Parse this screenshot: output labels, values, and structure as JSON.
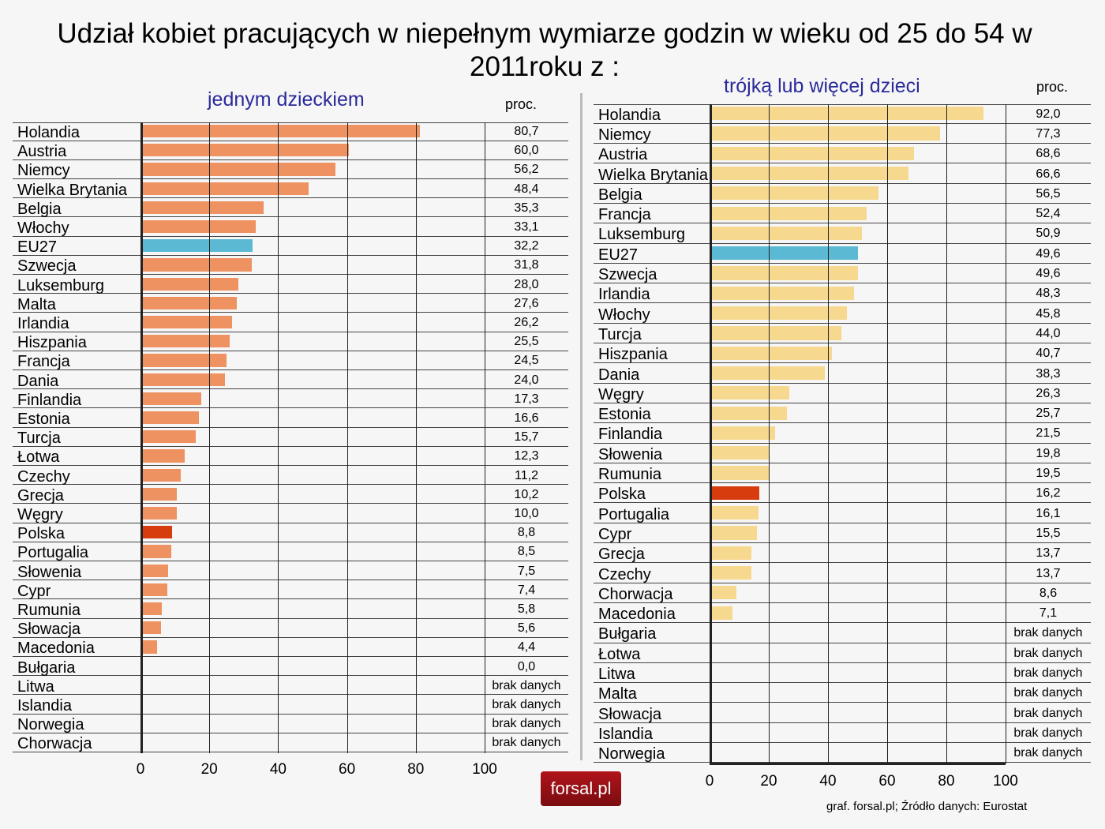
{
  "chart_data": [
    {
      "type": "bar",
      "title": "Udział kobiet pracujących w niepełnym wymiarze godzin w wieku od 25 do 54 w  2011roku  z :",
      "subtitle": "jednym dzieckiem",
      "unit": "proc.",
      "xlim": [
        0,
        100
      ],
      "xticks": [
        "0",
        "20",
        "40",
        "60",
        "80",
        "100"
      ],
      "grid": true,
      "colors": {
        "default": "#EE9262",
        "EU27": "#5CB9D4",
        "Polska": "#D63C0E"
      },
      "categories": [
        "Holandia",
        "Austria",
        "Niemcy",
        "Wielka Brytania",
        "Belgia",
        "Włochy",
        "EU27",
        "Szwecja",
        "Luksemburg",
        "Malta",
        "Irlandia",
        "Hiszpania",
        "Francja",
        "Dania",
        "Finlandia",
        "Estonia",
        "Turcja",
        "Łotwa",
        "Czechy",
        "Grecja",
        "Węgry",
        "Polska",
        "Portugalia",
        "Słowenia",
        "Cypr",
        "Rumunia",
        "Słowacja",
        "Macedonia",
        "Bułgaria",
        "Litwa",
        "Islandia",
        "Norwegia",
        "Chorwacja"
      ],
      "values": [
        80.7,
        60.0,
        56.2,
        48.4,
        35.3,
        33.1,
        32.2,
        31.8,
        28.0,
        27.6,
        26.2,
        25.5,
        24.5,
        24.0,
        17.3,
        16.6,
        15.7,
        12.3,
        11.2,
        10.2,
        10.0,
        8.8,
        8.5,
        7.5,
        7.4,
        5.8,
        5.6,
        4.4,
        0.0,
        null,
        null,
        null,
        null
      ],
      "value_labels": [
        "80,7",
        "60,0",
        "56,2",
        "48,4",
        "35,3",
        "33,1",
        "32,2",
        "31,8",
        "28,0",
        "27,6",
        "26,2",
        "25,5",
        "24,5",
        "24,0",
        "17,3",
        "16,6",
        "15,7",
        "12,3",
        "11,2",
        "10,2",
        "10,0",
        "8,8",
        "8,5",
        "7,5",
        "7,4",
        "5,8",
        "5,6",
        "4,4",
        "0,0",
        "brak danych",
        "brak danych",
        "brak danych",
        "brak danych"
      ]
    },
    {
      "type": "bar",
      "subtitle": "trójką lub więcej dzieci",
      "unit": "proc.",
      "xlim": [
        0,
        100
      ],
      "xticks": [
        "0",
        "20",
        "40",
        "60",
        "80",
        "100"
      ],
      "grid": true,
      "colors": {
        "default": "#F6D98E",
        "EU27": "#5CB9D4",
        "Polska": "#D63C0E"
      },
      "categories": [
        "Holandia",
        "Niemcy",
        "Austria",
        "Wielka Brytania",
        "Belgia",
        "Francja",
        "Luksemburg",
        "EU27",
        "Szwecja",
        "Irlandia",
        "Włochy",
        "Turcja",
        "Hiszpania",
        "Dania",
        "Węgry",
        "Estonia",
        "Finlandia",
        "Słowenia",
        "Rumunia",
        "Polska",
        "Portugalia",
        "Cypr",
        "Grecja",
        "Czechy",
        "Chorwacja",
        "Macedonia",
        "Bułgaria",
        "Łotwa",
        "Litwa",
        "Malta",
        "Słowacja",
        "Islandia",
        "Norwegia"
      ],
      "values": [
        92.0,
        77.3,
        68.6,
        66.6,
        56.5,
        52.4,
        50.9,
        49.6,
        49.6,
        48.3,
        45.8,
        44.0,
        40.7,
        38.3,
        26.3,
        25.7,
        21.5,
        19.8,
        19.5,
        16.2,
        16.1,
        15.5,
        13.7,
        13.7,
        8.6,
        7.1,
        null,
        null,
        null,
        null,
        null,
        null,
        null
      ],
      "value_labels": [
        "92,0",
        "77,3",
        "68,6",
        "66,6",
        "56,5",
        "52,4",
        "50,9",
        "49,6",
        "49,6",
        "48,3",
        "45,8",
        "44,0",
        "40,7",
        "38,3",
        "26,3",
        "25,7",
        "21,5",
        "19,8",
        "19,5",
        "16,2",
        "16,1",
        "15,5",
        "13,7",
        "13,7",
        "8,6",
        "7,1",
        "brak danych",
        "brak danych",
        "brak danych",
        "brak danych",
        "brak danych",
        "brak danych",
        "brak danych"
      ]
    }
  ],
  "footer": {
    "logo": "forsal.pl",
    "source": "graf. forsal.pl;    Źródło danych: Eurostat"
  }
}
